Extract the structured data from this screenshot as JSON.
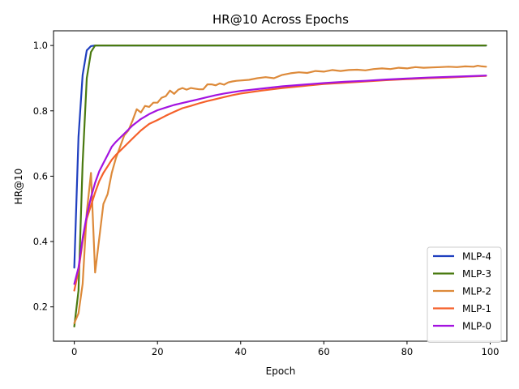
{
  "chart_data": {
    "type": "line",
    "title": "HR@10 Across Epochs",
    "xlabel": "Epoch",
    "ylabel": "HR@10",
    "xlim": [
      -5,
      104
    ],
    "ylim": [
      0.095,
      1.045
    ],
    "xticks": [
      0,
      20,
      40,
      60,
      80,
      100
    ],
    "yticks": [
      0.2,
      0.4,
      0.6,
      0.8,
      1.0
    ],
    "xtick_labels": [
      "0",
      "20",
      "40",
      "60",
      "80",
      "100"
    ],
    "ytick_labels": [
      "0.2",
      "0.4",
      "0.6",
      "0.8",
      "1.0"
    ],
    "grid": false,
    "legend_position": "lower-right",
    "series": [
      {
        "name": "MLP-4",
        "color": "#1f3fbf",
        "x": [
          0,
          1,
          2,
          3,
          4,
          5,
          6,
          10,
          20,
          40,
          60,
          80,
          99
        ],
        "y": [
          0.32,
          0.72,
          0.91,
          0.985,
          0.998,
          1.0,
          1.0,
          1.0,
          1.0,
          1.0,
          1.0,
          1.0,
          1.0
        ]
      },
      {
        "name": "MLP-3",
        "color": "#4a7a10",
        "x": [
          0,
          1,
          2,
          3,
          4,
          5,
          6,
          10,
          20,
          40,
          60,
          80,
          99
        ],
        "y": [
          0.14,
          0.25,
          0.64,
          0.9,
          0.98,
          1.0,
          1.0,
          1.0,
          1.0,
          1.0,
          1.0,
          1.0,
          1.0
        ]
      },
      {
        "name": "MLP-2",
        "color": "#dd8a3a",
        "x": [
          0,
          1,
          2,
          3,
          4,
          5,
          6,
          7,
          8,
          9,
          10,
          11,
          12,
          13,
          14,
          15,
          16,
          17,
          18,
          19,
          20,
          21,
          22,
          23,
          24,
          25,
          26,
          27,
          28,
          29,
          30,
          31,
          32,
          33,
          34,
          35,
          36,
          37,
          38,
          39,
          40,
          42,
          44,
          46,
          48,
          50,
          52,
          54,
          56,
          58,
          60,
          62,
          64,
          66,
          68,
          70,
          72,
          74,
          76,
          78,
          80,
          82,
          84,
          86,
          88,
          90,
          92,
          94,
          96,
          97,
          98,
          99
        ],
        "y": [
          0.15,
          0.18,
          0.27,
          0.49,
          0.61,
          0.305,
          0.41,
          0.515,
          0.545,
          0.61,
          0.655,
          0.69,
          0.725,
          0.74,
          0.77,
          0.805,
          0.795,
          0.815,
          0.812,
          0.825,
          0.825,
          0.84,
          0.845,
          0.862,
          0.852,
          0.865,
          0.87,
          0.865,
          0.87,
          0.868,
          0.866,
          0.866,
          0.881,
          0.881,
          0.878,
          0.884,
          0.88,
          0.887,
          0.89,
          0.892,
          0.893,
          0.895,
          0.9,
          0.903,
          0.9,
          0.91,
          0.915,
          0.918,
          0.916,
          0.922,
          0.92,
          0.925,
          0.922,
          0.925,
          0.926,
          0.924,
          0.928,
          0.93,
          0.928,
          0.932,
          0.93,
          0.934,
          0.932,
          0.933,
          0.934,
          0.935,
          0.934,
          0.936,
          0.935,
          0.938,
          0.936,
          0.935
        ]
      },
      {
        "name": "MLP-1",
        "color": "#f5602a",
        "x": [
          0,
          1,
          2,
          3,
          4,
          5,
          6,
          7,
          8,
          9,
          10,
          12,
          14,
          16,
          18,
          20,
          22,
          24,
          26,
          28,
          30,
          32,
          34,
          36,
          38,
          40,
          45,
          50,
          55,
          60,
          65,
          70,
          75,
          80,
          85,
          90,
          95,
          99
        ],
        "y": [
          0.25,
          0.31,
          0.4,
          0.47,
          0.51,
          0.55,
          0.585,
          0.61,
          0.63,
          0.65,
          0.665,
          0.69,
          0.715,
          0.74,
          0.76,
          0.772,
          0.785,
          0.797,
          0.808,
          0.815,
          0.823,
          0.83,
          0.836,
          0.842,
          0.848,
          0.853,
          0.862,
          0.87,
          0.876,
          0.882,
          0.886,
          0.89,
          0.894,
          0.897,
          0.9,
          0.902,
          0.905,
          0.907
        ]
      },
      {
        "name": "MLP-0",
        "color": "#a313e0",
        "x": [
          0,
          1,
          2,
          3,
          4,
          5,
          6,
          7,
          8,
          9,
          10,
          12,
          14,
          16,
          18,
          20,
          22,
          24,
          26,
          28,
          30,
          32,
          34,
          36,
          38,
          40,
          45,
          50,
          55,
          60,
          65,
          70,
          75,
          80,
          85,
          90,
          95,
          99
        ],
        "y": [
          0.27,
          0.32,
          0.41,
          0.48,
          0.535,
          0.58,
          0.615,
          0.64,
          0.665,
          0.69,
          0.705,
          0.73,
          0.755,
          0.775,
          0.79,
          0.802,
          0.81,
          0.818,
          0.824,
          0.83,
          0.836,
          0.842,
          0.848,
          0.853,
          0.857,
          0.861,
          0.868,
          0.875,
          0.88,
          0.885,
          0.889,
          0.892,
          0.896,
          0.899,
          0.902,
          0.904,
          0.906,
          0.908
        ]
      }
    ]
  }
}
